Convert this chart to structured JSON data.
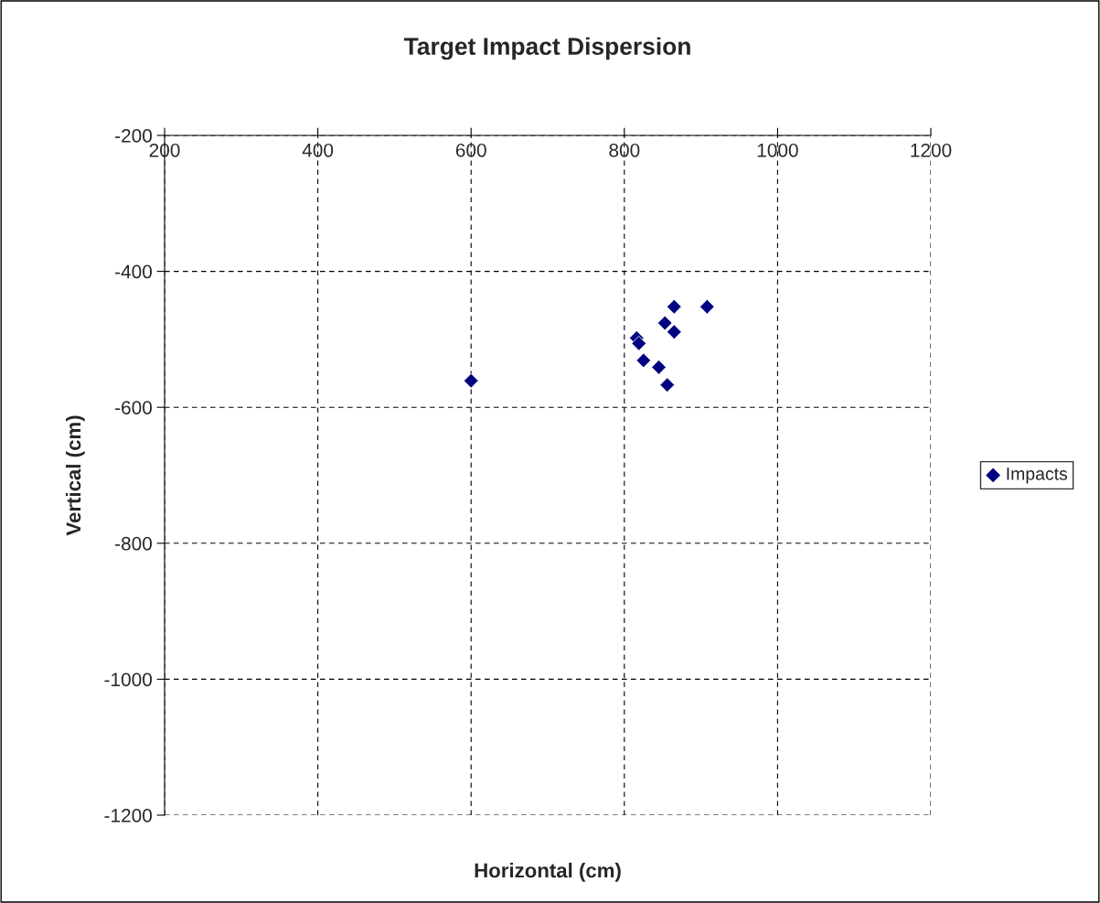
{
  "chart_data": {
    "type": "scatter",
    "title": "Target Impact Dispersion",
    "xlabel": "Horizontal (cm)",
    "ylabel": "Vertical (cm)",
    "xlim": [
      200,
      1200
    ],
    "xticks": [
      200,
      400,
      600,
      800,
      1000,
      1200
    ],
    "ylim": [
      -1200,
      -200
    ],
    "yticks": [
      -1200,
      -1000,
      -800,
      -600,
      -400,
      -200
    ],
    "grid": true,
    "legend": "right",
    "marker": "diamond",
    "series": [
      {
        "name": "Impacts",
        "color": "#000080",
        "x": [
          600,
          865,
          908,
          853,
          865,
          816,
          819,
          825,
          845,
          856
        ],
        "values": [
          -561,
          -452,
          -452,
          -476,
          -489,
          -498,
          -506,
          -531,
          -541,
          -567
        ]
      }
    ]
  }
}
